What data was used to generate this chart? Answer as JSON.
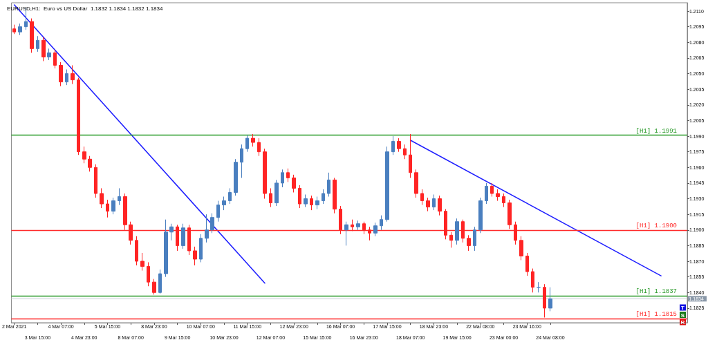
{
  "chart_data": {
    "type": "candlestick",
    "title": "EURUSD,H1:  Euro vs US Dollar  1.1832 1.1834 1.1832 1.1834",
    "categories": [
      "2 Mar 2021",
      null,
      null,
      null,
      "3 Mar 15:00",
      null,
      null,
      null,
      "4 Mar 07:00",
      null,
      null,
      null,
      "4 Mar 23:00",
      null,
      null,
      null,
      "5 Mar 15:00",
      null,
      null,
      null,
      "8 Mar 07:00",
      null,
      null,
      null,
      "8 Mar 23:00",
      null,
      null,
      null,
      "9 Mar 15:00",
      null,
      null,
      null,
      "10 Mar 07:00",
      null,
      null,
      null,
      "10 Mar 23:00",
      null,
      null,
      null,
      "11 Mar 15:00",
      null,
      null,
      null,
      "12 Mar 07:00",
      null,
      null,
      null,
      "12 Mar 23:00",
      null,
      null,
      null,
      "15 Mar 15:00",
      null,
      null,
      null,
      "16 Mar 07:00",
      null,
      null,
      null,
      "16 Mar 23:00",
      null,
      null,
      null,
      "17 Mar 15:00",
      null,
      null,
      null,
      "18 Mar 07:00",
      null,
      null,
      null,
      "18 Mar 23:00",
      null,
      null,
      null,
      "19 Mar 15:00",
      null,
      null,
      null,
      "22 Mar 08:00",
      null,
      null,
      null,
      "23 Mar 00:00",
      null,
      null,
      null,
      "23 Mar 16:00",
      null,
      null,
      null,
      "24 Mar 08:00",
      null,
      null,
      null,
      null,
      null,
      null,
      null,
      null,
      null,
      null,
      null,
      null,
      null,
      null,
      null,
      null,
      null,
      null,
      null,
      null,
      null,
      null,
      null
    ],
    "ohlc": [
      [
        1.2093,
        1.2097,
        1.2088,
        1.209
      ],
      [
        1.209,
        1.2098,
        1.2087,
        1.2095
      ],
      [
        1.2095,
        1.2113,
        1.2092,
        1.21
      ],
      [
        1.21,
        1.2103,
        1.207,
        1.2074
      ],
      [
        1.2074,
        1.2086,
        1.2071,
        1.2082
      ],
      [
        1.2082,
        1.2085,
        1.2062,
        1.2066
      ],
      [
        1.2066,
        1.2074,
        1.2063,
        1.207
      ],
      [
        1.207,
        1.2073,
        1.2055,
        1.2058
      ],
      [
        1.2058,
        1.2061,
        1.2038,
        1.2042
      ],
      [
        1.2042,
        1.2054,
        1.2039,
        1.205
      ],
      [
        1.205,
        1.2058,
        1.204,
        1.2044
      ],
      [
        1.2044,
        1.2046,
        1.1972,
        1.1975
      ],
      [
        1.1975,
        1.198,
        1.1964,
        1.1968
      ],
      [
        1.1968,
        1.1971,
        1.1956,
        1.196
      ],
      [
        1.196,
        1.1963,
        1.1931,
        1.1935
      ],
      [
        1.1935,
        1.194,
        1.1921,
        1.1925
      ],
      [
        1.1925,
        1.1929,
        1.1912,
        1.1918
      ],
      [
        1.1918,
        1.1931,
        1.1915,
        1.1928
      ],
      [
        1.1928,
        1.194,
        1.1924,
        1.1932
      ],
      [
        1.1932,
        1.1935,
        1.19,
        1.1905
      ],
      [
        1.1905,
        1.1908,
        1.1886,
        1.189
      ],
      [
        1.189,
        1.1894,
        1.1866,
        1.187
      ],
      [
        1.187,
        1.1878,
        1.1861,
        1.1865
      ],
      [
        1.1865,
        1.1869,
        1.1846,
        1.185
      ],
      [
        1.185,
        1.1853,
        1.1838,
        1.184
      ],
      [
        1.184,
        1.1862,
        1.1839,
        1.1858
      ],
      [
        1.1858,
        1.191,
        1.1855,
        1.1898
      ],
      [
        1.1898,
        1.1906,
        1.189,
        1.1903
      ],
      [
        1.1903,
        1.1905,
        1.188,
        1.1885
      ],
      [
        1.1885,
        1.1906,
        1.1882,
        1.1902
      ],
      [
        1.1902,
        1.1905,
        1.1876,
        1.188
      ],
      [
        1.188,
        1.1884,
        1.1866,
        1.1872
      ],
      [
        1.1872,
        1.1896,
        1.1869,
        1.1892
      ],
      [
        1.1892,
        1.1915,
        1.1888,
        1.19
      ],
      [
        1.19,
        1.1916,
        1.1897,
        1.1912
      ],
      [
        1.1912,
        1.1928,
        1.1908,
        1.1924
      ],
      [
        1.1924,
        1.1932,
        1.1919,
        1.1928
      ],
      [
        1.1928,
        1.194,
        1.1925,
        1.1936
      ],
      [
        1.1936,
        1.1968,
        1.1933,
        1.1965
      ],
      [
        1.1965,
        1.1982,
        1.195,
        1.1978
      ],
      [
        1.1978,
        1.1991,
        1.1975,
        1.1988
      ],
      [
        1.1988,
        1.1992,
        1.198,
        1.1984
      ],
      [
        1.1984,
        1.1988,
        1.1971,
        1.1975
      ],
      [
        1.1975,
        1.1978,
        1.193,
        1.1935
      ],
      [
        1.1935,
        1.194,
        1.1922,
        1.1926
      ],
      [
        1.1926,
        1.1948,
        1.1923,
        1.1945
      ],
      [
        1.1945,
        1.1958,
        1.1941,
        1.1955
      ],
      [
        1.1955,
        1.1959,
        1.1946,
        1.195
      ],
      [
        1.195,
        1.1953,
        1.1936,
        1.194
      ],
      [
        1.194,
        1.1943,
        1.1921,
        1.1925
      ],
      [
        1.1925,
        1.1934,
        1.1922,
        1.193
      ],
      [
        1.193,
        1.1933,
        1.1919,
        1.1924
      ],
      [
        1.1924,
        1.1932,
        1.192,
        1.1928
      ],
      [
        1.1928,
        1.1939,
        1.1925,
        1.1935
      ],
      [
        1.1935,
        1.1955,
        1.1932,
        1.1948
      ],
      [
        1.1948,
        1.195,
        1.1916,
        1.192
      ],
      [
        1.192,
        1.1923,
        1.1896,
        1.19
      ],
      [
        1.19,
        1.1908,
        1.1885,
        1.1905
      ],
      [
        1.1905,
        1.191,
        1.1899,
        1.1903
      ],
      [
        1.1903,
        1.1909,
        1.19,
        1.1906
      ],
      [
        1.1906,
        1.1908,
        1.1896,
        1.19
      ],
      [
        1.19,
        1.1903,
        1.189,
        1.1897
      ],
      [
        1.1897,
        1.1907,
        1.1894,
        1.1904
      ],
      [
        1.1904,
        1.1914,
        1.19,
        1.191
      ],
      [
        1.191,
        1.198,
        1.1908,
        1.1975
      ],
      [
        1.1975,
        1.199,
        1.1972,
        1.1985
      ],
      [
        1.1985,
        1.1988,
        1.1975,
        1.1978
      ],
      [
        1.1978,
        1.1982,
        1.1968,
        1.1972
      ],
      [
        1.1972,
        1.1992,
        1.195,
        1.1955
      ],
      [
        1.1955,
        1.1958,
        1.1931,
        1.1935
      ],
      [
        1.1935,
        1.1939,
        1.1924,
        1.1928
      ],
      [
        1.1928,
        1.1931,
        1.1918,
        1.1922
      ],
      [
        1.1922,
        1.1934,
        1.1919,
        1.193
      ],
      [
        1.193,
        1.1933,
        1.1914,
        1.1918
      ],
      [
        1.1918,
        1.192,
        1.1891,
        1.1895
      ],
      [
        1.1895,
        1.1898,
        1.1883,
        1.189
      ],
      [
        1.189,
        1.1911,
        1.1886,
        1.1908
      ],
      [
        1.1908,
        1.191,
        1.1888,
        1.1892
      ],
      [
        1.1892,
        1.1895,
        1.188,
        1.1885
      ],
      [
        1.1885,
        1.1903,
        1.188,
        1.19
      ],
      [
        1.19,
        1.1931,
        1.1897,
        1.1928
      ],
      [
        1.1928,
        1.1945,
        1.1925,
        1.1942
      ],
      [
        1.1942,
        1.1945,
        1.1932,
        1.1935
      ],
      [
        1.1935,
        1.1939,
        1.1928,
        1.1932
      ],
      [
        1.1932,
        1.1935,
        1.1922,
        1.1926
      ],
      [
        1.1926,
        1.1929,
        1.1901,
        1.1905
      ],
      [
        1.1905,
        1.1908,
        1.1886,
        1.189
      ],
      [
        1.189,
        1.1894,
        1.1871,
        1.1875
      ],
      [
        1.1875,
        1.1878,
        1.1856,
        1.186
      ],
      [
        1.186,
        1.1863,
        1.184,
        1.1845
      ],
      [
        1.1845,
        1.185,
        1.184,
        1.1845
      ],
      [
        1.1845,
        1.1848,
        1.1816,
        1.1825
      ],
      [
        1.1825,
        1.1845,
        1.1822,
        1.1834
      ],
      null,
      null,
      null,
      null,
      null,
      null,
      null,
      null,
      null,
      null,
      null,
      null,
      null,
      null,
      null,
      null,
      null,
      null,
      null,
      null,
      null,
      null,
      null
    ],
    "colors": [
      "#ff2424",
      "#4a7fbf",
      "#4a7fbf",
      "#ff2424",
      "#4a7fbf",
      "#ff2424",
      "#4a7fbf",
      "#ff2424",
      "#ff2424",
      "#4a7fbf",
      "#ff2424",
      "#ff2424",
      "#ff2424",
      "#ff2424",
      "#ff2424",
      "#ff2424",
      "#ff2424",
      "#4a7fbf",
      "#4a7fbf",
      "#ff2424",
      "#ff2424",
      "#ff2424",
      "#ff2424",
      "#ff2424",
      "#ff2424",
      "#4a7fbf",
      "#4a7fbf",
      "#4a7fbf",
      "#ff2424",
      "#4a7fbf",
      "#ff2424",
      "#ff2424",
      "#4a7fbf",
      "#4a7fbf",
      "#4a7fbf",
      "#4a7fbf",
      "#4a7fbf",
      "#4a7fbf",
      "#4a7fbf",
      "#4a7fbf",
      "#4a7fbf",
      "#ff2424",
      "#ff2424",
      "#ff2424",
      "#ff2424",
      "#4a7fbf",
      "#4a7fbf",
      "#ff2424",
      "#ff2424",
      "#ff2424",
      "#4a7fbf",
      "#ff2424",
      "#4a7fbf",
      "#4a7fbf",
      "#4a7fbf",
      "#ff2424",
      "#ff2424",
      "#4a7fbf",
      "#ff2424",
      "#4a7fbf",
      "#ff2424",
      "#ff2424",
      "#4a7fbf",
      "#4a7fbf",
      "#4a7fbf",
      "#4a7fbf",
      "#ff2424",
      "#ff2424",
      "#ff2424",
      "#ff2424",
      "#ff2424",
      "#ff2424",
      "#4a7fbf",
      "#ff2424",
      "#ff2424",
      "#ff2424",
      "#4a7fbf",
      "#ff2424",
      "#ff2424",
      "#4a7fbf",
      "#4a7fbf",
      "#4a7fbf",
      "#ff2424",
      "#ff2424",
      "#ff2424",
      "#ff2424",
      "#ff2424",
      "#ff2424",
      "#ff2424",
      "#ff2424",
      "#4a7fbf",
      "#ff2424",
      "#4a7fbf",
      null,
      null,
      null,
      null,
      null,
      null,
      null,
      null,
      null,
      null,
      null,
      null,
      null,
      null,
      null,
      null,
      null,
      null,
      null,
      null,
      null,
      null,
      null
    ],
    "series": [
      {
        "type": "line",
        "color": "#2222ff",
        "values": [
          1.2116,
          null,
          null,
          null,
          null,
          null,
          null,
          null,
          null,
          null,
          null,
          null,
          null,
          null,
          null,
          null,
          null,
          null,
          null,
          null,
          null,
          null,
          null,
          null,
          null,
          null,
          null,
          null,
          null,
          null,
          null,
          null,
          null,
          null,
          null,
          null,
          null,
          null,
          null,
          null,
          null,
          null,
          null,
          1.1849,
          null,
          null,
          null,
          null,
          null,
          null,
          null,
          null,
          null,
          null,
          null,
          null,
          null,
          null,
          null,
          null,
          null,
          null,
          null,
          null,
          null,
          null,
          null,
          null,
          null,
          null,
          null,
          null,
          null,
          null,
          null,
          null,
          null,
          null,
          null,
          null,
          null,
          null,
          null,
          null,
          null,
          null,
          null,
          null,
          null,
          null,
          null,
          null,
          null,
          null,
          null,
          null,
          null,
          null,
          null,
          null,
          null,
          null,
          null,
          null,
          null,
          null,
          null,
          null,
          null,
          null,
          null,
          null,
          null,
          null,
          null,
          null
        ]
      },
      {
        "type": "line",
        "color": "#2222ff",
        "values": [
          null,
          null,
          null,
          null,
          null,
          null,
          null,
          null,
          null,
          null,
          null,
          null,
          null,
          null,
          null,
          null,
          null,
          null,
          null,
          null,
          null,
          null,
          null,
          null,
          null,
          null,
          null,
          null,
          null,
          null,
          null,
          null,
          null,
          null,
          null,
          null,
          null,
          null,
          null,
          null,
          null,
          null,
          null,
          null,
          null,
          null,
          null,
          null,
          null,
          null,
          null,
          null,
          null,
          null,
          null,
          null,
          null,
          null,
          null,
          null,
          null,
          null,
          null,
          null,
          null,
          null,
          null,
          null,
          1.1986,
          null,
          null,
          null,
          null,
          null,
          null,
          null,
          null,
          null,
          null,
          null,
          null,
          null,
          null,
          null,
          null,
          null,
          null,
          null,
          null,
          null,
          null,
          null,
          null,
          null,
          null,
          null,
          null,
          null,
          null,
          null,
          null,
          null,
          null,
          null,
          null,
          null,
          null,
          null,
          null,
          null,
          null,
          1.1856,
          null,
          null,
          null,
          null
        ]
      }
    ],
    "marker": "none",
    "ylim": [
      1.1811,
      1.2118
    ],
    "yticks": [
      {
        "value": 1.1825,
        "label": "1.1825"
      },
      {
        "value": 1.184,
        "label": "1.1840"
      },
      {
        "value": 1.1855,
        "label": "1.1855"
      },
      {
        "value": 1.187,
        "label": "1.1870"
      },
      {
        "value": 1.1885,
        "label": "1.1885"
      },
      {
        "value": 1.19,
        "label": "1.1900"
      },
      {
        "value": 1.1915,
        "label": "1.1915"
      },
      {
        "value": 1.193,
        "label": "1.1930"
      },
      {
        "value": 1.1945,
        "label": "1.1945"
      },
      {
        "value": 1.196,
        "label": "1.1960"
      },
      {
        "value": 1.1975,
        "label": "1.1975"
      },
      {
        "value": 1.199,
        "label": "1.1990"
      },
      {
        "value": 1.2005,
        "label": "1.2005"
      },
      {
        "value": 1.202,
        "label": "1.2020"
      },
      {
        "value": 1.2035,
        "label": "1.2035"
      },
      {
        "value": 1.205,
        "label": "1.2050"
      },
      {
        "value": 1.2065,
        "label": "1.2065"
      },
      {
        "value": 1.208,
        "label": "1.2080"
      },
      {
        "value": 1.2095,
        "label": "1.2095"
      },
      {
        "value": 1.211,
        "label": "1.2110"
      }
    ],
    "ref_lines": [
      {
        "axis": "y",
        "value": 1.1991,
        "label": "[H1] 1.1991",
        "color": "#2a9a2a"
      },
      {
        "axis": "y",
        "value": 1.19,
        "label": "[H1] 1.1900",
        "color": "#ff2a2a"
      },
      {
        "axis": "y",
        "value": 1.1837,
        "label": "[H1] 1.1837",
        "color": "#2a9a2a"
      },
      {
        "axis": "y",
        "value": 1.1815,
        "label": "[H1] 1.1815",
        "color": "#ff2a2a"
      },
      {
        "axis": "y",
        "value": 1.1834,
        "label": null,
        "color": "#c4ccd4"
      }
    ],
    "annotations": [
      "T",
      "S",
      "R",
      "1.1834"
    ]
  }
}
